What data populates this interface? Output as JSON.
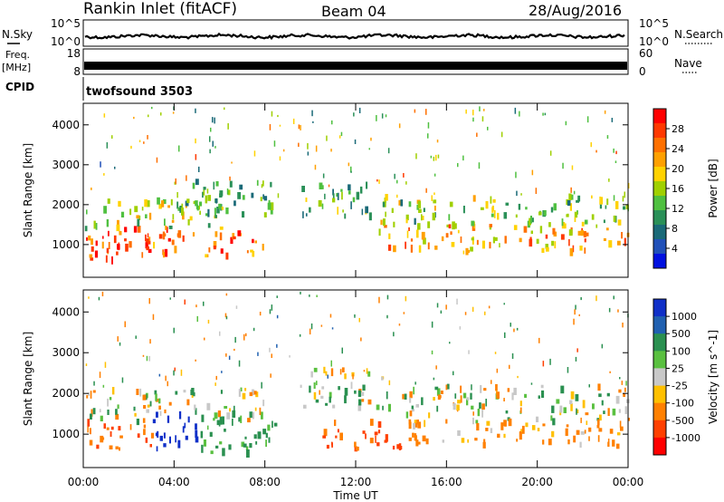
{
  "header": {
    "station": "Rankin Inlet (fitACF)",
    "beam": "Beam 04",
    "date": "28/Aug/2016"
  },
  "strip_panels": {
    "noise": {
      "left_label": "N.Sky",
      "right_label": "N.Search",
      "left_ticks": [
        "10^5",
        "10^0"
      ],
      "right_ticks": [
        "10^5",
        "10^0"
      ]
    },
    "frequency": {
      "left_label_line1": "Freq.",
      "left_label_line2": "[MHz]",
      "left_ticks": [
        "18",
        "8"
      ],
      "right_label": "Nave",
      "right_ticks": [
        "60",
        "0"
      ]
    },
    "cpid": {
      "label": "CPID",
      "program": "twofsound 3503"
    }
  },
  "chart_data": [
    {
      "type": "heatmap",
      "title": "",
      "quantity": "Power",
      "ylabel": "Slant Range [km]",
      "xlabel": "",
      "x_ticks": [
        "00:00",
        "04:00",
        "08:00",
        "12:00",
        "16:00",
        "20:00",
        "00:00"
      ],
      "x_range_hours": [
        0,
        24
      ],
      "ylim": [
        180,
        4540
      ],
      "y_ticks": [
        1000,
        2000,
        3000,
        4000
      ],
      "colorbar_label": "Power [dB]",
      "colorbar_ticks": [
        "28",
        "24",
        "20",
        "16",
        "12",
        "8",
        "4"
      ],
      "colorbar_colors": [
        "#ff0000",
        "#ff3800",
        "#ff7000",
        "#ffa000",
        "#ffd200",
        "#a0d000",
        "#4fc040",
        "#2a9058",
        "#1a6a78",
        "#2050b8",
        "#0010e0"
      ],
      "echo_bands": [
        {
          "t0": 0.0,
          "t1": 3.8,
          "r0": 600,
          "r1": 1400,
          "level": 0.9
        },
        {
          "t0": 0.0,
          "t1": 6.5,
          "r0": 1400,
          "r1": 2100,
          "level": 0.5
        },
        {
          "t0": 2.5,
          "t1": 8.0,
          "r0": 700,
          "r1": 1300,
          "level": 0.85
        },
        {
          "t0": 4.0,
          "t1": 8.5,
          "r0": 1700,
          "r1": 2600,
          "level": 0.35
        },
        {
          "t0": 9.5,
          "t1": 13.0,
          "r0": 1700,
          "r1": 2500,
          "level": 0.4
        },
        {
          "t0": 13.0,
          "t1": 24.0,
          "r0": 800,
          "r1": 1500,
          "level": 0.7
        },
        {
          "t0": 13.0,
          "t1": 24.0,
          "r0": 1500,
          "r1": 2200,
          "level": 0.45
        }
      ]
    },
    {
      "type": "heatmap",
      "title": "",
      "quantity": "Velocity",
      "ylabel": "Slant Range [km]",
      "xlabel": "Time UT",
      "x_ticks": [
        "00:00",
        "04:00",
        "08:00",
        "12:00",
        "16:00",
        "20:00",
        "00:00"
      ],
      "x_range_hours": [
        0,
        24
      ],
      "ylim": [
        180,
        4540
      ],
      "y_ticks": [
        1000,
        2000,
        3000,
        4000
      ],
      "colorbar_label": "Velocity [m s^-1]",
      "colorbar_ticks": [
        "1000",
        "500",
        "100",
        "25",
        "-25",
        "-100",
        "-500",
        "-1000"
      ],
      "colorbar_colors": [
        "#1030c8",
        "#2060b0",
        "#2a9050",
        "#5ac040",
        "#c8c8c8",
        "#ffc000",
        "#ff8000",
        "#ff4000",
        "#ff0000"
      ],
      "echo_bands": [
        {
          "t0": 0.0,
          "t1": 3.0,
          "r0": 600,
          "r1": 1300,
          "v": -300
        },
        {
          "t0": 0.0,
          "t1": 8.0,
          "r0": 1300,
          "r1": 2100,
          "v": 0
        },
        {
          "t0": 3.0,
          "t1": 5.0,
          "r0": 600,
          "r1": 1500,
          "v": 900
        },
        {
          "t0": 5.0,
          "t1": 8.5,
          "r0": 500,
          "r1": 1400,
          "v": 150
        },
        {
          "t0": 9.5,
          "t1": 13.5,
          "r0": 1600,
          "r1": 2600,
          "v": 0
        },
        {
          "t0": 10.5,
          "t1": 14.0,
          "r0": 600,
          "r1": 1300,
          "v": -350
        },
        {
          "t0": 14.0,
          "t1": 24.0,
          "r0": 1300,
          "r1": 2200,
          "v": 0
        },
        {
          "t0": 14.0,
          "t1": 24.0,
          "r0": 700,
          "r1": 1300,
          "v": -120
        }
      ]
    }
  ]
}
